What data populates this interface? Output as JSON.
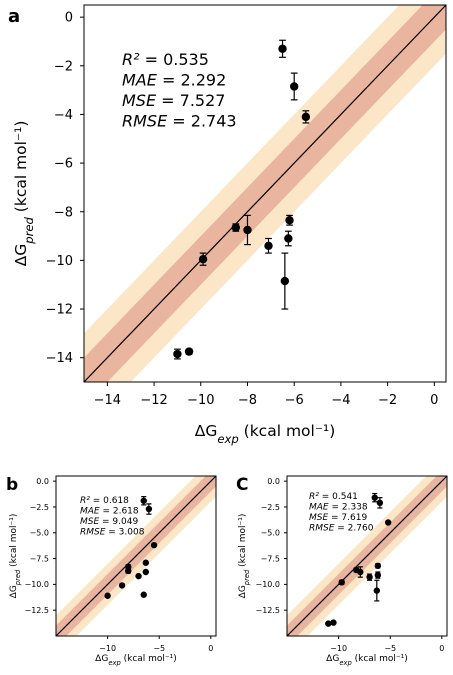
{
  "colors": {
    "outer_band": "#fbe6c8",
    "inner_band": "#e9b59f",
    "points": "#000000",
    "diagonal": "#000000"
  },
  "chart_data": [
    {
      "panel": "a",
      "type": "scatter",
      "xlabel": "ΔG_exp (kcal mol⁻¹)",
      "ylabel": "ΔG_pred (kcal mol⁻¹)",
      "xlim": [
        -15,
        0.5
      ],
      "ylim": [
        -15,
        0.5
      ],
      "xticks": [
        -14,
        -12,
        -10,
        -8,
        -6,
        -4,
        -2,
        0
      ],
      "yticks": [
        -14,
        -12,
        -10,
        -8,
        -6,
        -4,
        -2,
        0
      ],
      "bands": {
        "inner": 1,
        "outer": 2
      },
      "stats": [
        {
          "label": "R² = 0.535"
        },
        {
          "label": "MAE = 2.292"
        },
        {
          "label": "MSE = 7.527"
        },
        {
          "label": "RMSE = 2.743"
        }
      ],
      "points": [
        {
          "x": -6.5,
          "y": -1.3,
          "err": 0.35
        },
        {
          "x": -6.0,
          "y": -2.85,
          "err": 0.55
        },
        {
          "x": -5.5,
          "y": -4.1,
          "err": 0.25
        },
        {
          "x": -6.2,
          "y": -8.35,
          "err": 0.2
        },
        {
          "x": -8.5,
          "y": -8.65,
          "err": 0.15
        },
        {
          "x": -8.0,
          "y": -8.75,
          "err": 0.6
        },
        {
          "x": -9.9,
          "y": -9.95,
          "err": 0.25
        },
        {
          "x": -6.25,
          "y": -9.1,
          "err": 0.3
        },
        {
          "x": -7.1,
          "y": -9.4,
          "err": 0.3
        },
        {
          "x": -6.4,
          "y": -10.85,
          "err": 1.15
        },
        {
          "x": -11.0,
          "y": -13.85,
          "err": 0.2
        },
        {
          "x": -10.5,
          "y": -13.75,
          "err": 0.1
        }
      ]
    },
    {
      "panel": "b",
      "type": "scatter",
      "xlabel": "ΔG_exp (kcal mol⁻¹)",
      "ylabel": "ΔG_pred (kcal mol⁻¹)",
      "xlim": [
        -15,
        0.5
      ],
      "ylim": [
        -15,
        0.5
      ],
      "xticks": [
        -10,
        -5,
        0
      ],
      "yticks": [
        0.0,
        -2.5,
        -5.0,
        -7.5,
        -10.0,
        -12.5
      ],
      "yticklabels": [
        "0.0",
        "−2.5",
        "−5.0",
        "−7.5",
        "−10.0",
        "−12.5"
      ],
      "bands": {
        "inner": 1,
        "outer": 2
      },
      "stats": [
        {
          "label": "R² = 0.618"
        },
        {
          "label": "MAE = 2.618"
        },
        {
          "label": "MSE = 9.049"
        },
        {
          "label": "RMSE = 3.008"
        }
      ],
      "points": [
        {
          "x": -6.5,
          "y": -1.9,
          "err": 0.4
        },
        {
          "x": -6.0,
          "y": -2.7,
          "err": 0.5
        },
        {
          "x": -5.5,
          "y": -6.2,
          "err": 0
        },
        {
          "x": -8.0,
          "y": -8.3,
          "err": 0.2
        },
        {
          "x": -8.0,
          "y": -8.7,
          "err": 0.2
        },
        {
          "x": -6.3,
          "y": -7.9,
          "err": 0
        },
        {
          "x": -6.3,
          "y": -8.8,
          "err": 0
        },
        {
          "x": -7.0,
          "y": -9.2,
          "err": 0
        },
        {
          "x": -8.6,
          "y": -10.1,
          "err": 0
        },
        {
          "x": -10.0,
          "y": -11.1,
          "err": 0
        },
        {
          "x": -6.5,
          "y": -11.0,
          "err": 0
        }
      ]
    },
    {
      "panel": "C",
      "type": "scatter",
      "xlabel": "ΔG_exp (kcal mol⁻¹)",
      "ylabel": "ΔG_pred (kcal mol⁻¹)",
      "xlim": [
        -15,
        0.5
      ],
      "ylim": [
        -15,
        0.5
      ],
      "xticks": [
        -10,
        -5,
        0
      ],
      "yticks": [
        0.0,
        -2.5,
        -5.0,
        -7.5,
        -10.0,
        -12.5
      ],
      "yticklabels": [
        "0.0",
        "−2.5",
        "−5.0",
        "−7.5",
        "−10.0",
        "−12.5"
      ],
      "bands": {
        "inner": 1,
        "outer": 2
      },
      "stats": [
        {
          "label": "R² = 0.541"
        },
        {
          "label": "MAE = 2.338"
        },
        {
          "label": "MSE = 7.619"
        },
        {
          "label": "RMSE = 2.760"
        }
      ],
      "points": [
        {
          "x": -6.5,
          "y": -1.6,
          "err": 0.4
        },
        {
          "x": -6.0,
          "y": -2.1,
          "err": 0.5
        },
        {
          "x": -5.2,
          "y": -4.0,
          "err": 0
        },
        {
          "x": -6.2,
          "y": -8.2,
          "err": 0.2
        },
        {
          "x": -8.3,
          "y": -8.6,
          "err": 0.15
        },
        {
          "x": -7.9,
          "y": -8.8,
          "err": 0.5
        },
        {
          "x": -9.7,
          "y": -9.8,
          "err": 0.2
        },
        {
          "x": -6.2,
          "y": -9.1,
          "err": 0.3
        },
        {
          "x": -7.0,
          "y": -9.3,
          "err": 0.3
        },
        {
          "x": -6.3,
          "y": -10.6,
          "err": 1.0
        },
        {
          "x": -11.0,
          "y": -13.8,
          "err": 0
        },
        {
          "x": -10.5,
          "y": -13.7,
          "err": 0
        }
      ]
    }
  ]
}
